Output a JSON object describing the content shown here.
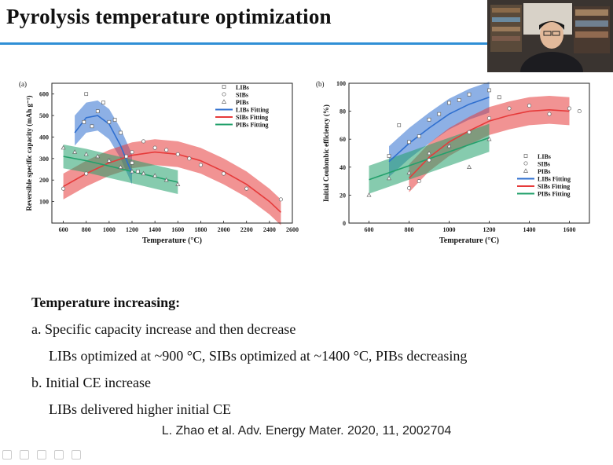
{
  "slide": {
    "title": "Pyrolysis temperature optimization",
    "accent_color": "#2f8fd6",
    "citation": "L. Zhao et al. Adv. Energy Mater. 2020, 11, 2002704"
  },
  "bullets": {
    "heading": "Temperature increasing:",
    "items": [
      "a. Specific capacity increase and then decrease",
      "LIBs optimized at ~900 °C, SIBs optimized at ~1400 °C, PIBs decreasing",
      "b. Initial CE increase",
      "LIBs delivered higher initial CE"
    ]
  },
  "webcam": {
    "label": "presenter-webcam"
  },
  "chart_data": [
    {
      "type": "scatter",
      "panel": "(a)",
      "xlabel": "Temperature (°C)",
      "ylabel": "Reversible specific capacity (mAh g⁻¹)",
      "xlim": [
        500,
        2600
      ],
      "ylim": [
        0,
        650
      ],
      "xticks": [
        600,
        800,
        1000,
        1200,
        1400,
        1600,
        1800,
        2000,
        2200,
        2400,
        2600
      ],
      "yticks": [
        100,
        200,
        300,
        400,
        500,
        600
      ],
      "legend": [
        "LIBs",
        "SIBs",
        "PIBs",
        "LIBs Fitting",
        "SIBs Fitting",
        "PIBs Fitting"
      ],
      "colors": {
        "LIBs": "#2f6fcf",
        "SIBs": "#e63a3a",
        "PIBs": "#22a06b"
      },
      "series": [
        {
          "name": "LIBs",
          "x": [
            780,
            800,
            850,
            900,
            950,
            1000,
            1050,
            1100,
            1150,
            1200,
            1250
          ],
          "y": [
            470,
            600,
            450,
            520,
            560,
            470,
            480,
            420,
            310,
            280,
            240
          ]
        },
        {
          "name": "SIBs",
          "x": [
            600,
            800,
            1000,
            1200,
            1300,
            1400,
            1500,
            1600,
            1700,
            1800,
            2000,
            2200,
            2500
          ],
          "y": [
            160,
            230,
            290,
            330,
            380,
            350,
            340,
            320,
            300,
            270,
            230,
            160,
            110
          ]
        },
        {
          "name": "PIBs",
          "x": [
            600,
            700,
            800,
            900,
            1000,
            1100,
            1200,
            1300,
            1400,
            1500,
            1600
          ],
          "y": [
            350,
            330,
            320,
            310,
            290,
            260,
            240,
            230,
            220,
            200,
            180
          ]
        }
      ],
      "fits": [
        {
          "name": "LIBs Fitting",
          "x": [
            700,
            800,
            900,
            1000,
            1100,
            1200
          ],
          "y": [
            420,
            490,
            500,
            460,
            360,
            230
          ]
        },
        {
          "name": "SIBs Fitting",
          "x": [
            600,
            800,
            1000,
            1200,
            1400,
            1600,
            1800,
            2000,
            2200,
            2400,
            2500
          ],
          "y": [
            170,
            230,
            280,
            315,
            330,
            320,
            290,
            240,
            180,
            100,
            50
          ]
        },
        {
          "name": "PIBs Fitting",
          "x": [
            600,
            800,
            1000,
            1200,
            1400,
            1600
          ],
          "y": [
            310,
            290,
            265,
            240,
            215,
            190
          ]
        }
      ],
      "bands": [
        {
          "name": "LIBs",
          "x": [
            700,
            800,
            900,
            1000,
            1100,
            1200
          ],
          "y": [
            430,
            490,
            500,
            460,
            370,
            250
          ],
          "halfwidth": 70
        },
        {
          "name": "SIBs",
          "x": [
            600,
            800,
            1000,
            1200,
            1400,
            1600,
            1800,
            2000,
            2200,
            2400,
            2500
          ],
          "y": [
            170,
            230,
            280,
            315,
            330,
            320,
            290,
            240,
            180,
            100,
            50
          ],
          "halfwidth": 60
        },
        {
          "name": "PIBs",
          "x": [
            600,
            800,
            1000,
            1200,
            1400,
            1600
          ],
          "y": [
            310,
            290,
            265,
            240,
            215,
            190
          ],
          "halfwidth": 55
        }
      ]
    },
    {
      "type": "scatter",
      "panel": "(b)",
      "xlabel": "Temperature (°C)",
      "ylabel": "Initial Coulombic efficiency (%)",
      "xlim": [
        500,
        1700
      ],
      "ylim": [
        0,
        100
      ],
      "xticks": [
        600,
        800,
        1000,
        1200,
        1400,
        1600
      ],
      "yticks": [
        0,
        20,
        40,
        60,
        80,
        100
      ],
      "legend": [
        "LIBs",
        "SIBs",
        "PIBs",
        "LIBs Fitting",
        "SIBs Fitting",
        "PIBs Fitting"
      ],
      "colors": {
        "LIBs": "#2f6fcf",
        "SIBs": "#e63a3a",
        "PIBs": "#22a06b"
      },
      "series": [
        {
          "name": "LIBs",
          "x": [
            700,
            750,
            800,
            850,
            900,
            950,
            1000,
            1050,
            1100,
            1200,
            1250
          ],
          "y": [
            48,
            70,
            58,
            62,
            74,
            78,
            86,
            88,
            92,
            95,
            90
          ]
        },
        {
          "name": "SIBs",
          "x": [
            800,
            850,
            900,
            1000,
            1100,
            1200,
            1300,
            1400,
            1500,
            1600,
            1650
          ],
          "y": [
            25,
            30,
            45,
            55,
            65,
            75,
            82,
            84,
            78,
            82,
            80
          ]
        },
        {
          "name": "PIBs",
          "x": [
            600,
            700,
            800,
            900,
            1000,
            1100,
            1200
          ],
          "y": [
            20,
            32,
            36,
            50,
            55,
            40,
            60
          ]
        }
      ],
      "fits": [
        {
          "name": "LIBs Fitting",
          "x": [
            700,
            800,
            900,
            1000,
            1100,
            1200
          ],
          "y": [
            44,
            57,
            68,
            78,
            85,
            90
          ]
        },
        {
          "name": "SIBs Fitting",
          "x": [
            800,
            900,
            1000,
            1100,
            1200,
            1300,
            1400,
            1500,
            1600
          ],
          "y": [
            32,
            47,
            58,
            66,
            73,
            77,
            80,
            81,
            80
          ]
        },
        {
          "name": "PIBs Fitting",
          "x": [
            600,
            700,
            800,
            900,
            1000,
            1100,
            1200
          ],
          "y": [
            31,
            36,
            41,
            46,
            51,
            56,
            61
          ]
        }
      ],
      "bands": [
        {
          "name": "LIBs",
          "x": [
            700,
            800,
            900,
            1000,
            1100,
            1200
          ],
          "y": [
            44,
            57,
            68,
            78,
            85,
            90
          ],
          "halfwidth": 11
        },
        {
          "name": "SIBs",
          "x": [
            800,
            900,
            1000,
            1100,
            1200,
            1300,
            1400,
            1500,
            1600
          ],
          "y": [
            32,
            47,
            58,
            66,
            73,
            77,
            80,
            81,
            80
          ],
          "halfwidth": 10
        },
        {
          "name": "PIBs",
          "x": [
            600,
            700,
            800,
            900,
            1000,
            1100,
            1200
          ],
          "y": [
            31,
            36,
            41,
            46,
            51,
            56,
            61
          ],
          "halfwidth": 10
        }
      ]
    }
  ]
}
